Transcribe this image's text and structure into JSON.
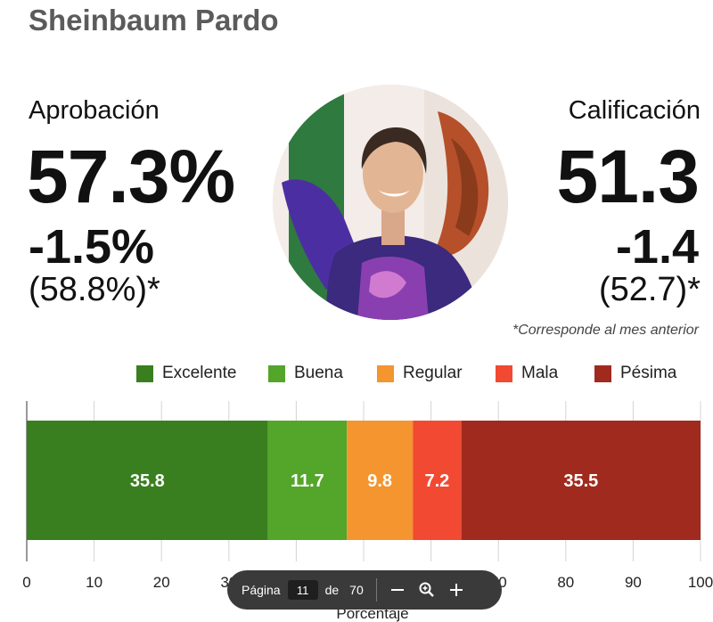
{
  "page": {
    "title": "Sheinbaum Pardo"
  },
  "approval": {
    "label": "Aprobación",
    "value": "57.3%",
    "change": "-1.5%",
    "previous": "(58.8%)*"
  },
  "rating": {
    "label": "Calificación",
    "value": "51.3",
    "change": "-1.4",
    "previous": "(52.7)*"
  },
  "footnote": "*Corresponde al mes anterior",
  "photo": {
    "icon": "portrait-photo"
  },
  "colors": {
    "excelente": "#3a7f1f",
    "buena": "#53a62a",
    "regular": "#f4952f",
    "mala": "#f24a32",
    "pesima": "#a12a1e"
  },
  "chart_data": {
    "type": "bar",
    "orientation": "horizontal",
    "stacked": true,
    "categories": [
      ""
    ],
    "series": [
      {
        "name": "Excelente",
        "values": [
          35.8
        ],
        "color": "#3a7f1f"
      },
      {
        "name": "Buena",
        "values": [
          11.7
        ],
        "color": "#53a62a"
      },
      {
        "name": "Regular",
        "values": [
          9.8
        ],
        "color": "#f4952f"
      },
      {
        "name": "Mala",
        "values": [
          7.2
        ],
        "color": "#f24a32"
      },
      {
        "name": "Pésima",
        "values": [
          35.5
        ],
        "color": "#a12a1e"
      }
    ],
    "xlim": [
      0,
      100
    ],
    "xticks": [
      0,
      10,
      20,
      30,
      40,
      50,
      60,
      70,
      80,
      90,
      100
    ],
    "xlabel": "Porcentaje",
    "grid": true,
    "legend": "top"
  },
  "pager": {
    "page_label": "Página",
    "page_value": "11",
    "of_label": "de",
    "total": "70",
    "zoom_out_icon": "minus-icon",
    "zoom_icon": "zoom-icon",
    "zoom_in_icon": "plus-icon"
  }
}
